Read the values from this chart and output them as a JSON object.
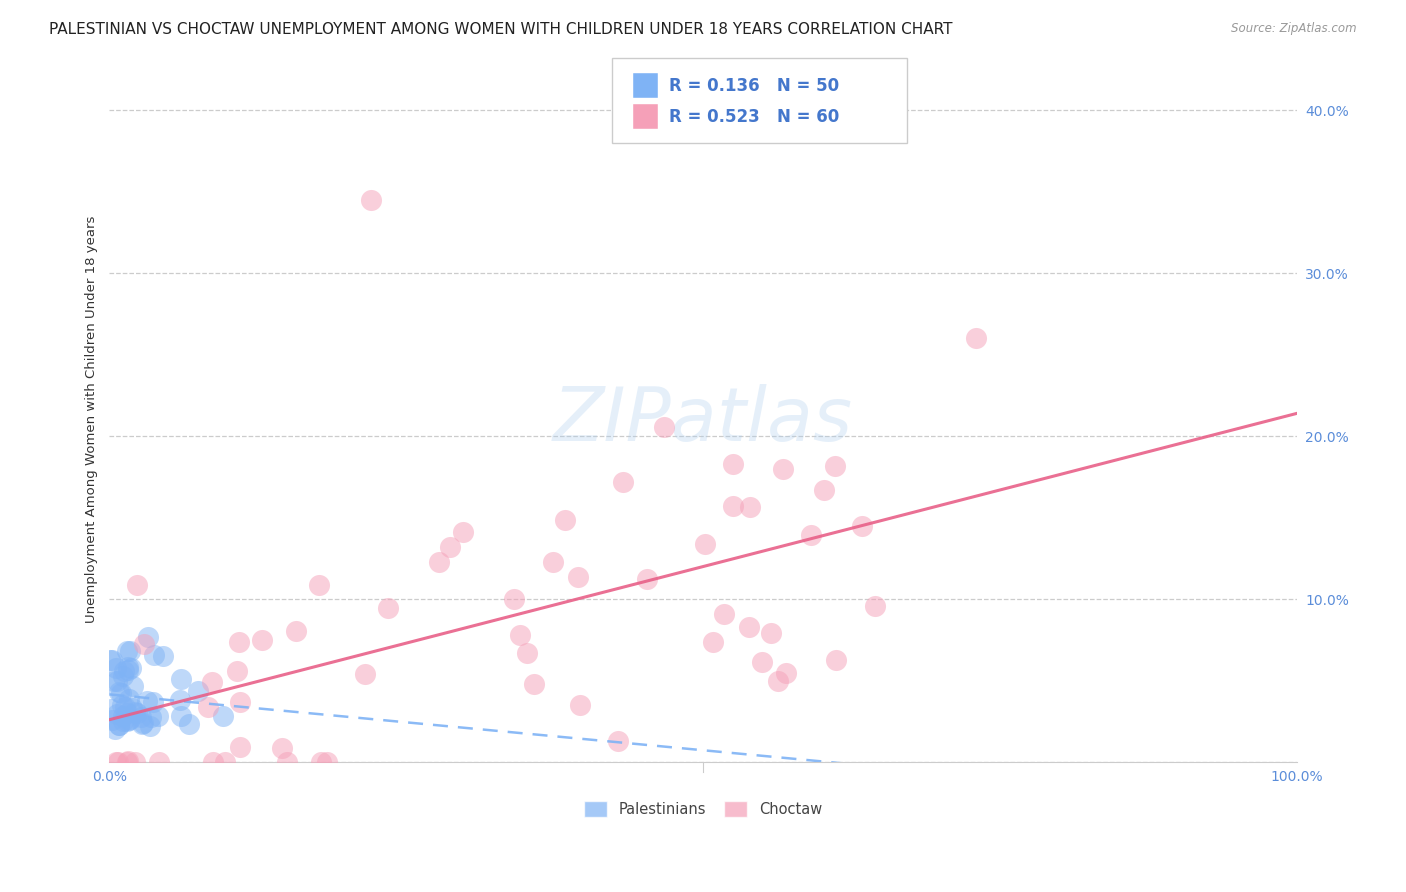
{
  "title": "PALESTINIAN VS CHOCTAW UNEMPLOYMENT AMONG WOMEN WITH CHILDREN UNDER 18 YEARS CORRELATION CHART",
  "source": "Source: ZipAtlas.com",
  "ylabel": "Unemployment Among Women with Children Under 18 years",
  "xlim": [
    0,
    1.0
  ],
  "ylim": [
    0,
    0.42
  ],
  "yticks": [
    0.0,
    0.1,
    0.2,
    0.3,
    0.4
  ],
  "ytick_labels": [
    "",
    "10.0%",
    "20.0%",
    "30.0%",
    "40.0%"
  ],
  "xtick_left_label": "0.0%",
  "xtick_right_label": "100.0%",
  "legend_labels": [
    "Palestinians",
    "Choctaw"
  ],
  "watermark": "ZIPatlas",
  "background_color": "#ffffff",
  "grid_color": "#cccccc",
  "palestinian_color": "#7fb3f5",
  "choctaw_color": "#f5a0b8",
  "palestinian_line_color": "#7fb3f5",
  "choctaw_line_color": "#e86088",
  "palestinian_R": 0.136,
  "palestinian_N": 50,
  "choctaw_R": 0.523,
  "choctaw_N": 60,
  "title_fontsize": 11,
  "tick_fontsize": 10,
  "legend_R1": "R = 0.136",
  "legend_N1": "N = 50",
  "legend_R2": "R = 0.523",
  "legend_N2": "N = 60"
}
